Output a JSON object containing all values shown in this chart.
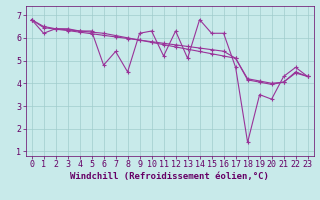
{
  "xlabel": "Windchill (Refroidissement éolien,°C)",
  "x_values": [
    0,
    1,
    2,
    3,
    4,
    5,
    6,
    7,
    8,
    9,
    10,
    11,
    12,
    13,
    14,
    15,
    16,
    17,
    18,
    19,
    20,
    21,
    22,
    23
  ],
  "y_zigzag": [
    6.8,
    6.2,
    6.4,
    6.4,
    6.3,
    6.3,
    4.8,
    5.4,
    4.5,
    6.2,
    6.3,
    5.2,
    6.3,
    5.1,
    6.8,
    6.2,
    6.2,
    4.7,
    1.4,
    3.5,
    3.3,
    4.3,
    4.7,
    4.3
  ],
  "y_trend1": [
    6.8,
    6.45,
    6.38,
    6.32,
    6.25,
    6.18,
    6.11,
    6.04,
    5.97,
    5.9,
    5.83,
    5.76,
    5.69,
    5.62,
    5.55,
    5.48,
    5.41,
    5.1,
    4.15,
    4.05,
    3.95,
    4.05,
    4.5,
    4.3
  ],
  "y_trend2": [
    6.8,
    6.5,
    6.4,
    6.35,
    6.3,
    6.25,
    6.2,
    6.1,
    6.0,
    5.9,
    5.8,
    5.7,
    5.6,
    5.5,
    5.4,
    5.3,
    5.2,
    5.1,
    4.2,
    4.1,
    4.0,
    4.05,
    4.45,
    4.3
  ],
  "line_color": "#993399",
  "marker": "+",
  "bg_color": "#c8eaea",
  "grid_color": "#a0cccc",
  "axis_label_color": "#660066",
  "tick_color": "#660066",
  "ylim": [
    0.8,
    7.4
  ],
  "xlim": [
    -0.5,
    23.5
  ],
  "yticks": [
    1,
    2,
    3,
    4,
    5,
    6,
    7
  ],
  "xticks": [
    0,
    1,
    2,
    3,
    4,
    5,
    6,
    7,
    8,
    9,
    10,
    11,
    12,
    13,
    14,
    15,
    16,
    17,
    18,
    19,
    20,
    21,
    22,
    23
  ],
  "xlabel_fontsize": 6.5,
  "tick_fontsize": 6.0
}
